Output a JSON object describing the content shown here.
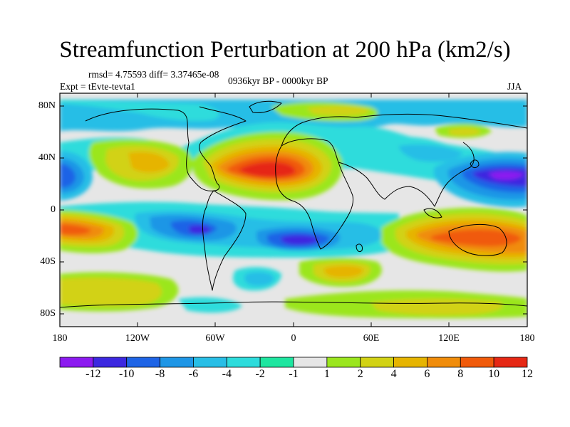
{
  "title": "Streamfunction Perturbation at 200 hPa (km2/s)",
  "stats_line": "rmsd= 4.75593 diff= 3.37465e-08",
  "experiment": "Expt = tEvte-tevta1",
  "period": "0936kyr BP - 0000kyr BP",
  "season": "JJA",
  "lat_ticks": [
    "80N",
    "40N",
    "0",
    "40S",
    "80S"
  ],
  "lon_ticks": [
    "180",
    "120W",
    "60W",
    "0",
    "60E",
    "120E",
    "180"
  ],
  "colorbar": {
    "colors": [
      "#8c1af0",
      "#3c28e0",
      "#1e64e6",
      "#1e96e6",
      "#28bee6",
      "#2ddcdc",
      "#1ee6a0",
      "#e6e6e6",
      "#9be61e",
      "#d2d214",
      "#e6b400",
      "#f08c0a",
      "#f05a0a",
      "#e62814"
    ],
    "labels": [
      "-12",
      "-10",
      "-8",
      "-6",
      "-4",
      "-2",
      "-1",
      "1",
      "2",
      "4",
      "6",
      "8",
      "10",
      "12"
    ]
  },
  "background_color": "#e6e6e6"
}
